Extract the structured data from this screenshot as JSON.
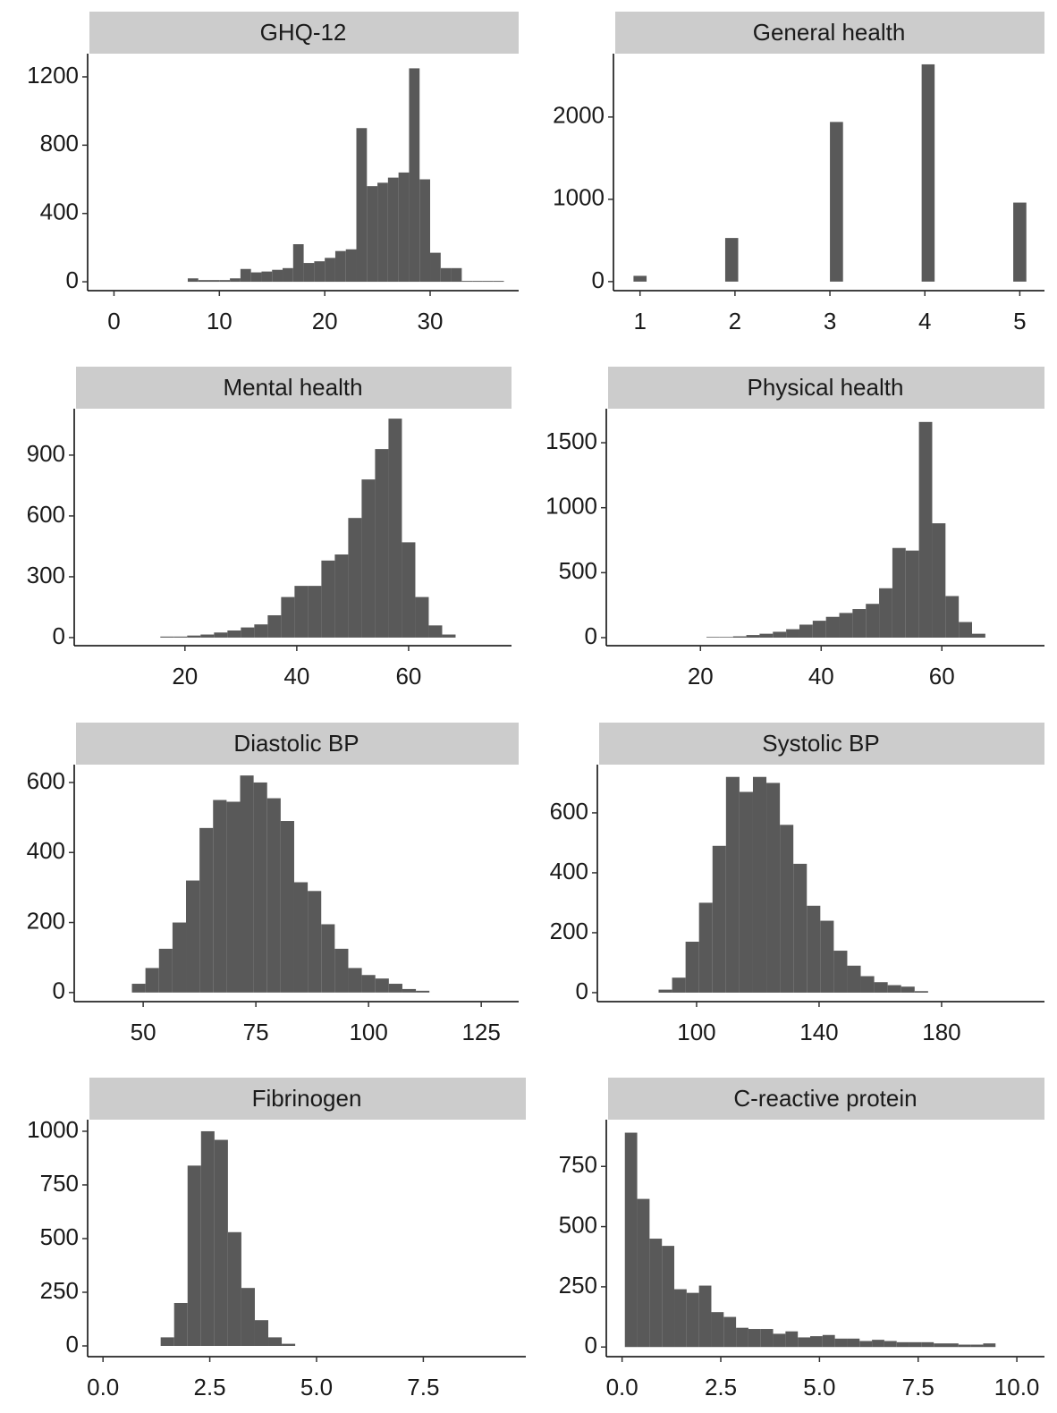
{
  "chart_data": [
    {
      "type": "histogram",
      "title": "GHQ-12",
      "color": "#595959",
      "bins": [
        7,
        8,
        9,
        10,
        11,
        12,
        13,
        14,
        15,
        16,
        17,
        18,
        19,
        20,
        21,
        22,
        23,
        24,
        25,
        26,
        27,
        28,
        29,
        30,
        31,
        32,
        33,
        34,
        35,
        36,
        37
      ],
      "values": [
        20,
        10,
        10,
        10,
        20,
        75,
        55,
        60,
        70,
        80,
        220,
        110,
        120,
        140,
        180,
        190,
        900,
        560,
        580,
        610,
        640,
        1250,
        600,
        170,
        80,
        80,
        5,
        5,
        5,
        5
      ],
      "xlim": [
        -2.5,
        38.4
      ],
      "ylim": [
        -52,
        1336
      ],
      "xticks": [
        0,
        10,
        20,
        30
      ],
      "yticks": [
        0,
        400,
        800,
        1200
      ]
    },
    {
      "type": "histogram",
      "title": "General health",
      "color": "#595959",
      "bins": [
        0.931,
        1.069,
        1.207,
        1.345,
        1.483,
        1.621,
        1.759,
        1.897,
        2.034,
        2.172,
        2.31,
        2.448,
        2.586,
        2.724,
        2.862,
        3.0,
        3.138,
        3.276,
        3.414,
        3.552,
        3.69,
        3.828,
        3.966,
        4.103,
        4.241,
        4.379,
        4.517,
        4.655,
        4.793,
        4.931,
        5.069
      ],
      "values": [
        70,
        0,
        0,
        0,
        0,
        0,
        0,
        530,
        0,
        0,
        0,
        0,
        0,
        0,
        0,
        1940,
        0,
        0,
        0,
        0,
        0,
        0,
        2640,
        0,
        0,
        0,
        0,
        0,
        0,
        960
      ],
      "xlim": [
        0.72,
        5.26
      ],
      "ylim": [
        -110,
        2770
      ],
      "xticks": [
        1,
        2,
        3,
        4,
        5
      ],
      "yticks": [
        0,
        1000,
        2000
      ]
    },
    {
      "type": "histogram",
      "title": "Mental health",
      "color": "#595959",
      "bins": [
        15.6,
        18,
        20.4,
        22.8,
        25.2,
        27.6,
        30,
        32.4,
        34.8,
        37.2,
        39.6,
        42,
        44.4,
        46.8,
        49.2,
        51.6,
        54,
        56.4,
        58.8,
        61.2,
        63.6,
        66,
        68.4
      ],
      "values": [
        5,
        5,
        10,
        15,
        25,
        35,
        50,
        65,
        110,
        200,
        255,
        255,
        380,
        410,
        590,
        780,
        930,
        1080,
        470,
        200,
        60,
        15
      ],
      "xlim": [
        0.2,
        78.4
      ],
      "ylim": [
        -40,
        1129
      ],
      "xticks": [
        20,
        40,
        60
      ],
      "yticks": [
        0,
        300,
        600,
        900
      ]
    },
    {
      "type": "histogram",
      "title": "Physical health",
      "color": "#595959",
      "bins": [
        21,
        23.2,
        25.4,
        27.6,
        29.8,
        32,
        34.2,
        36.4,
        38.6,
        40.8,
        43,
        45.2,
        47.4,
        49.6,
        51.8,
        54,
        56.2,
        58.4,
        60.6,
        62.8,
        65,
        67.2
      ],
      "values": [
        5,
        5,
        10,
        20,
        30,
        45,
        65,
        100,
        130,
        160,
        190,
        220,
        260,
        380,
        690,
        670,
        1660,
        880,
        320,
        120,
        30
      ],
      "xlim": [
        4.4,
        77.0
      ],
      "ylim": [
        -62,
        1762
      ],
      "xticks": [
        20,
        40,
        60
      ],
      "yticks": [
        0,
        500,
        1000,
        1500
      ]
    },
    {
      "type": "histogram",
      "title": "Diastolic BP",
      "color": "#595959",
      "bins": [
        47.5,
        50.5,
        53.5,
        56.5,
        59.5,
        62.5,
        65.5,
        68.5,
        71.5,
        74.5,
        77.5,
        80.5,
        83.5,
        86.5,
        89.5,
        92.5,
        95.5,
        98.5,
        101.5,
        104.5,
        107.5,
        110.5,
        113.5
      ],
      "values": [
        25,
        70,
        125,
        200,
        320,
        470,
        550,
        545,
        620,
        600,
        555,
        490,
        315,
        290,
        195,
        125,
        70,
        50,
        40,
        25,
        10,
        5
      ],
      "xlim": [
        34.7,
        133.3
      ],
      "ylim": [
        -26,
        651
      ],
      "xticks": [
        50,
        75,
        100,
        125
      ],
      "yticks": [
        0,
        200,
        400,
        600
      ]
    },
    {
      "type": "histogram",
      "title": "Systolic BP",
      "color": "#595959",
      "bins": [
        87.6,
        92,
        96.4,
        100.8,
        105.2,
        109.6,
        114,
        118.4,
        122.8,
        127.2,
        131.6,
        136,
        140.4,
        144.8,
        149.2,
        153.6,
        158,
        162.4,
        166.8,
        171.2,
        175.6
      ],
      "values": [
        10,
        50,
        170,
        300,
        490,
        720,
        670,
        720,
        700,
        560,
        430,
        290,
        240,
        140,
        90,
        55,
        35,
        25,
        20,
        5
      ],
      "xlim": [
        67.6,
        213.6
      ],
      "ylim": [
        -30,
        761
      ],
      "xticks": [
        100,
        140,
        180
      ],
      "yticks": [
        0,
        200,
        400,
        600
      ]
    },
    {
      "type": "histogram",
      "title": "Fibrinogen",
      "color": "#595959",
      "bins": [
        1.35,
        1.665,
        1.98,
        2.295,
        2.61,
        2.925,
        3.24,
        3.555,
        3.87,
        4.185,
        4.5
      ],
      "values": [
        40,
        200,
        840,
        1000,
        960,
        530,
        270,
        120,
        40,
        10
      ],
      "xlim": [
        -0.36,
        9.9
      ],
      "ylim": [
        -50,
        1054
      ],
      "xticks": [
        {
          "value": 0,
          "label": "0.0"
        },
        2.5,
        {
          "value": 5,
          "label": "5.0"
        },
        7.5
      ],
      "yticks": [
        0,
        250,
        500,
        750,
        1000
      ]
    },
    {
      "type": "histogram",
      "title": "C-reactive protein",
      "color": "#595959",
      "bins": [
        0.07,
        0.383,
        0.696,
        1.009,
        1.322,
        1.635,
        1.948,
        2.261,
        2.574,
        2.887,
        3.2,
        3.513,
        3.826,
        4.139,
        4.452,
        4.765,
        5.078,
        5.391,
        5.704,
        6.017,
        6.33,
        6.643,
        6.956,
        7.269,
        7.582,
        7.895,
        8.208,
        8.521,
        8.834,
        9.147,
        9.46
      ],
      "values": [
        890,
        615,
        450,
        420,
        240,
        225,
        255,
        145,
        125,
        80,
        75,
        75,
        55,
        65,
        40,
        45,
        50,
        35,
        35,
        25,
        30,
        25,
        20,
        20,
        20,
        15,
        15,
        10,
        10,
        15
      ],
      "xlim": [
        -0.4,
        10.7
      ],
      "ylim": [
        -40,
        944
      ],
      "xticks": [
        {
          "value": 0,
          "label": "0.0"
        },
        2.5,
        {
          "value": 5,
          "label": "5.0"
        },
        7.5,
        {
          "value": 10,
          "label": "10.0"
        }
      ],
      "yticks": [
        0,
        250,
        500,
        750
      ]
    }
  ]
}
